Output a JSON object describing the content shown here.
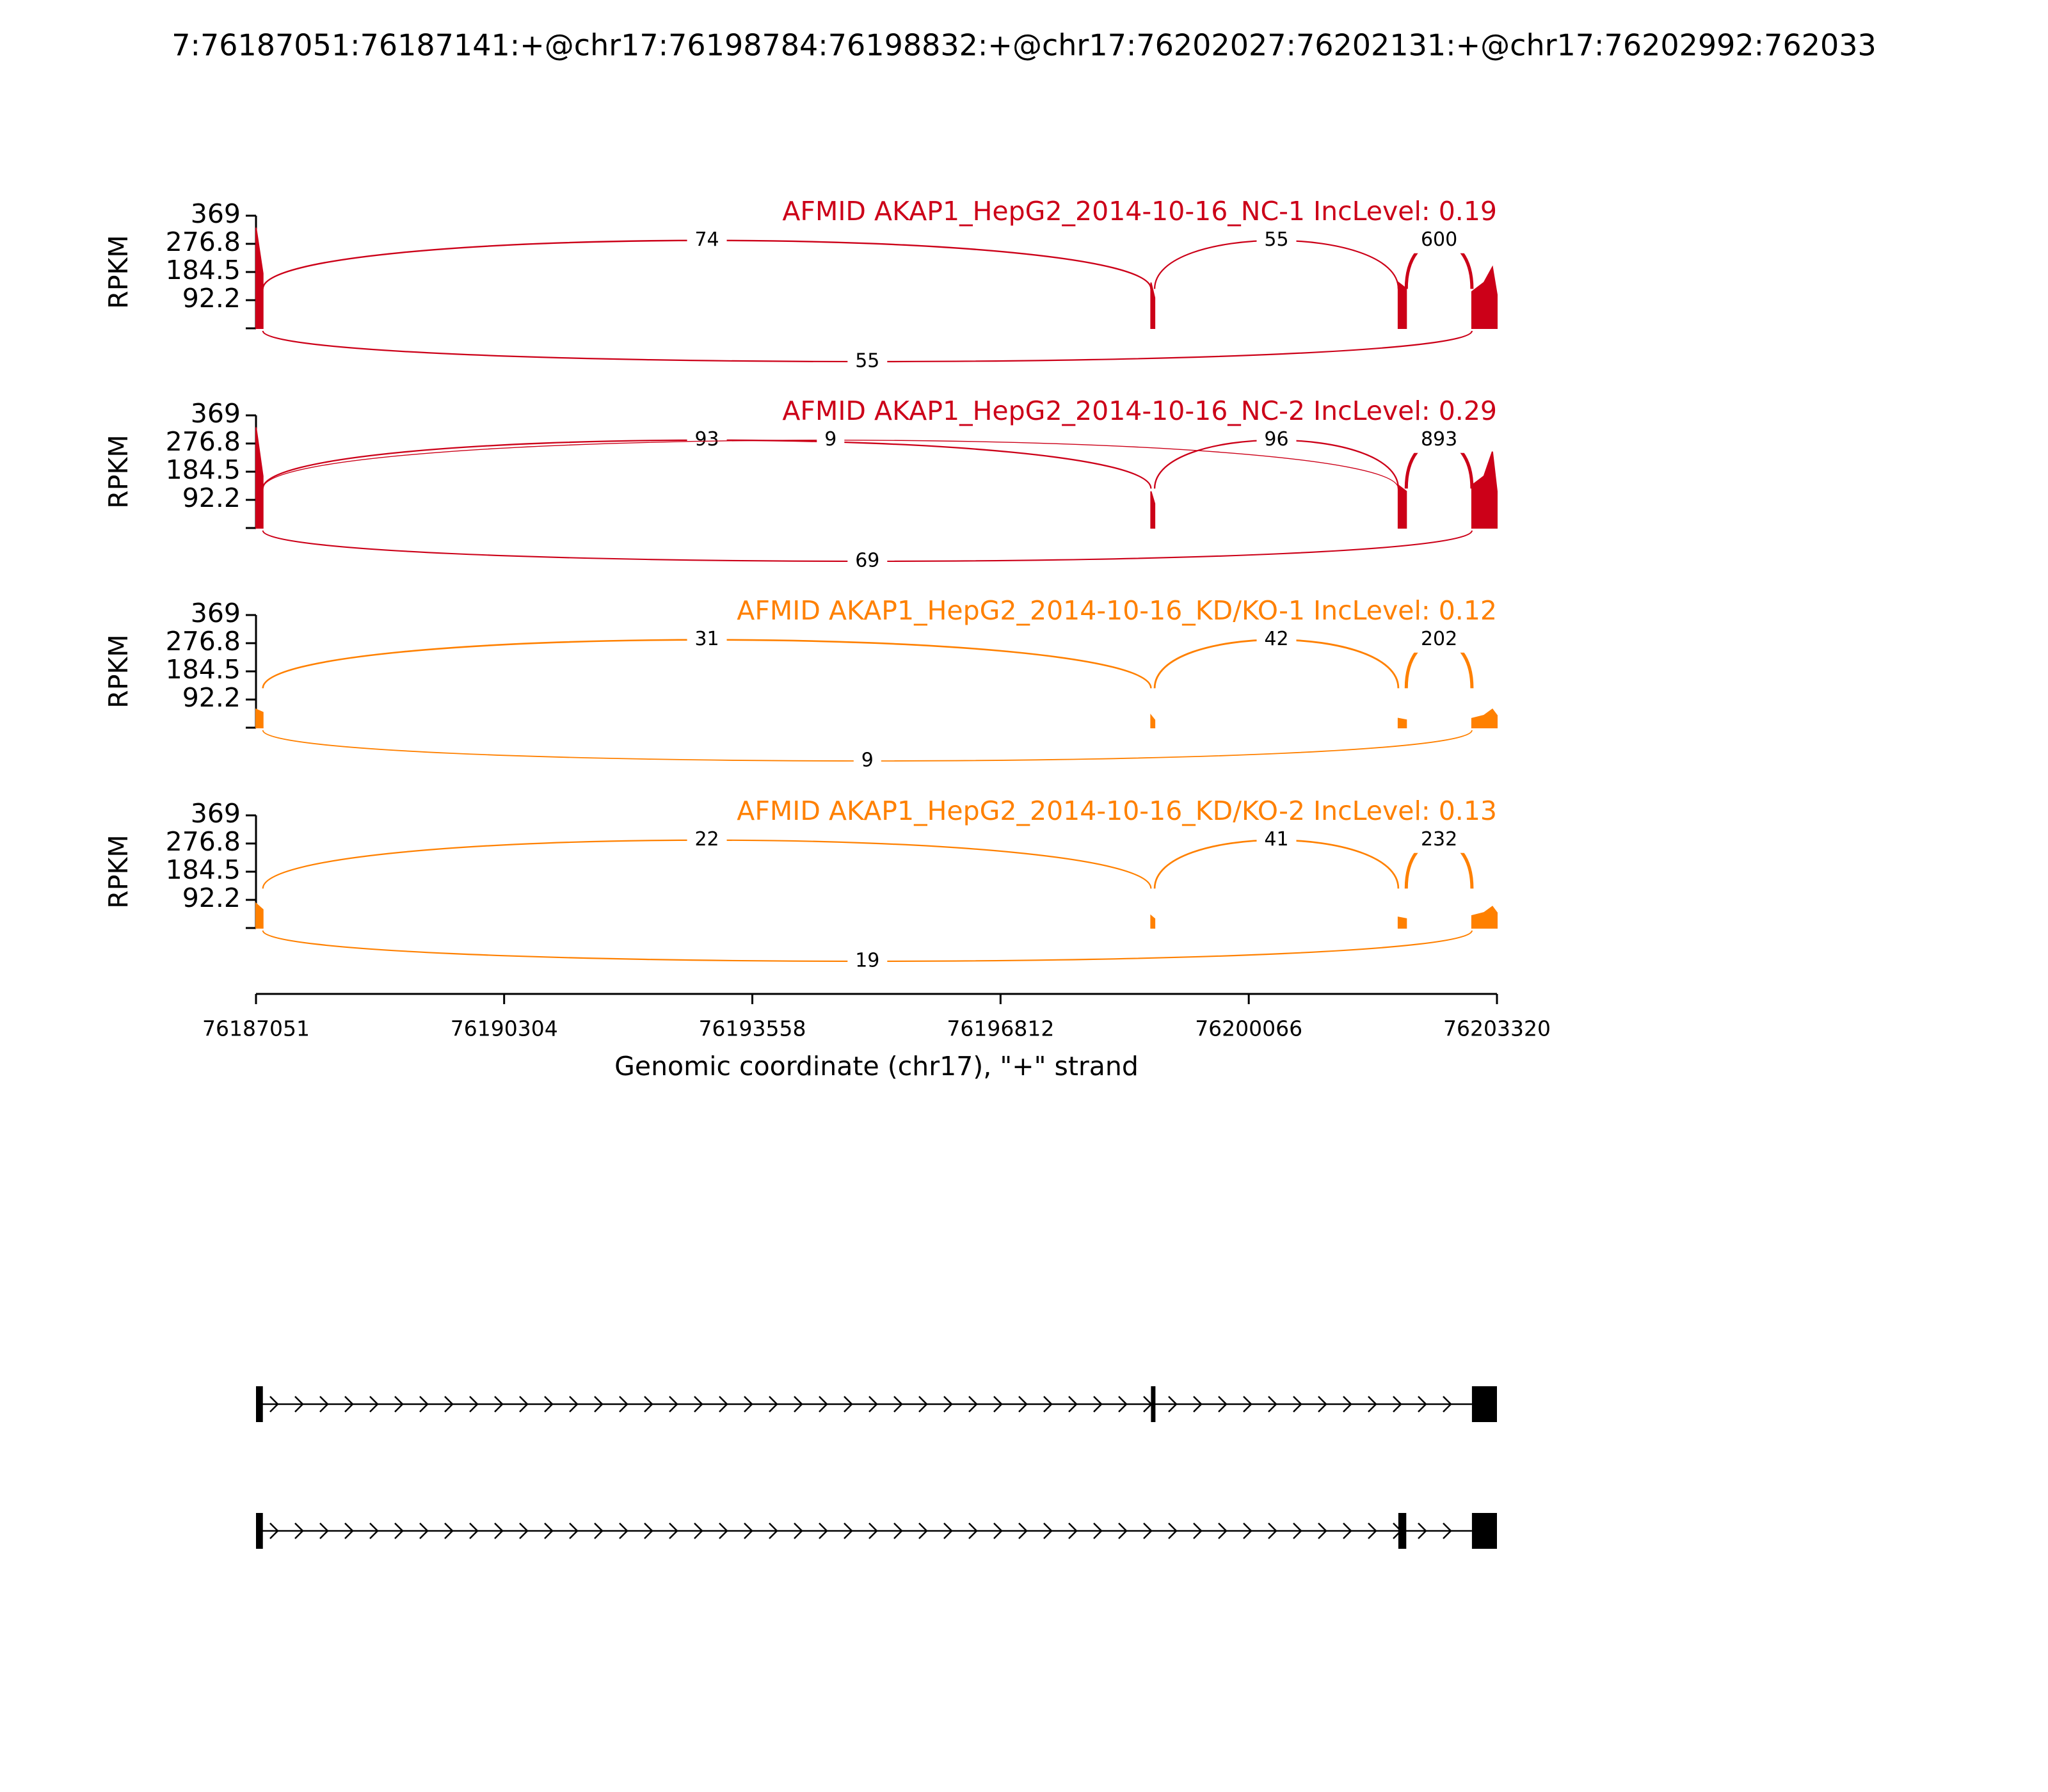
{
  "title": "7:76187051:76187141:+@chr17:76198784:76198832:+@chr17:76202027:76202131:+@chr17:76202992:762033",
  "chart_data": [
    {
      "type": "sashimi",
      "title": "AFMID AKAP1_HepG2_2014-10-16_NC-1 IncLevel: 0.19",
      "ylabel": "RPKM",
      "color": "#cc0018",
      "ylim": [
        0,
        369
      ],
      "yticks": [
        92.2,
        184.5,
        276.8,
        369
      ],
      "coverage": {
        "x": [
          76187051,
          76187141,
          76190000,
          76198784,
          76198832,
          76200000,
          76202027,
          76202131,
          76202500,
          76202992,
          76203150,
          76203260,
          76203320
        ],
        "values": [
          330,
          180,
          null,
          150,
          100,
          null,
          150,
          130,
          null,
          120,
          150,
          200,
          110
        ]
      },
      "junctions": [
        {
          "start": 76187141,
          "end": 76198784,
          "count": 74,
          "side": "above"
        },
        {
          "start": 76198832,
          "end": 76202027,
          "count": 55,
          "side": "above"
        },
        {
          "start": 76202131,
          "end": 76202992,
          "count": 600,
          "side": "above"
        },
        {
          "start": 76187141,
          "end": 76202992,
          "count": 55,
          "side": "below"
        }
      ]
    },
    {
      "type": "sashimi",
      "title": "AFMID AKAP1_HepG2_2014-10-16_NC-2 IncLevel: 0.29",
      "ylabel": "RPKM",
      "color": "#cc0018",
      "ylim": [
        0,
        369
      ],
      "yticks": [
        92.2,
        184.5,
        276.8,
        369
      ],
      "coverage": {
        "x": [
          76187051,
          76187141,
          76190000,
          76198784,
          76198832,
          76200000,
          76202027,
          76202131,
          76202500,
          76202992,
          76203150,
          76203260,
          76203320
        ],
        "values": [
          330,
          170,
          null,
          120,
          80,
          null,
          140,
          120,
          null,
          140,
          170,
          250,
          120
        ]
      },
      "junctions": [
        {
          "start": 76187141,
          "end": 76198784,
          "count": 93,
          "side": "above"
        },
        {
          "start": 76187141,
          "end": 76202027,
          "count": 9,
          "side": "above"
        },
        {
          "start": 76198832,
          "end": 76202027,
          "count": 96,
          "side": "above"
        },
        {
          "start": 76202131,
          "end": 76202992,
          "count": 893,
          "side": "above"
        },
        {
          "start": 76187141,
          "end": 76202992,
          "count": 69,
          "side": "below"
        }
      ]
    },
    {
      "type": "sashimi",
      "title": "AFMID AKAP1_HepG2_2014-10-16_KD/KO-1 IncLevel: 0.12",
      "ylabel": "RPKM",
      "color": "#ff8000",
      "ylim": [
        0,
        369
      ],
      "yticks": [
        92.2,
        184.5,
        276.8,
        369
      ],
      "coverage": {
        "x": [
          76187051,
          76187141,
          76190000,
          76198784,
          76198832,
          76200000,
          76202027,
          76202131,
          76202500,
          76202992,
          76203150,
          76203260,
          76203320
        ],
        "values": [
          60,
          50,
          null,
          40,
          25,
          null,
          30,
          25,
          null,
          30,
          40,
          60,
          40
        ]
      },
      "junctions": [
        {
          "start": 76187141,
          "end": 76198784,
          "count": 31,
          "side": "above"
        },
        {
          "start": 76198832,
          "end": 76202027,
          "count": 42,
          "side": "above"
        },
        {
          "start": 76202131,
          "end": 76202992,
          "count": 202,
          "side": "above"
        },
        {
          "start": 76187141,
          "end": 76202992,
          "count": 9,
          "side": "below"
        }
      ]
    },
    {
      "type": "sashimi",
      "title": "AFMID AKAP1_HepG2_2014-10-16_KD/KO-2 IncLevel: 0.13",
      "ylabel": "RPKM",
      "color": "#ff8000",
      "ylim": [
        0,
        369
      ],
      "yticks": [
        92.2,
        184.5,
        276.8,
        369
      ],
      "coverage": {
        "x": [
          76187051,
          76187141,
          76190000,
          76198784,
          76198832,
          76200000,
          76202027,
          76202131,
          76202500,
          76202992,
          76203150,
          76203260,
          76203320
        ],
        "values": [
          80,
          60,
          null,
          40,
          30,
          null,
          35,
          30,
          null,
          40,
          50,
          70,
          50
        ]
      },
      "junctions": [
        {
          "start": 76187141,
          "end": 76198784,
          "count": 22,
          "side": "above"
        },
        {
          "start": 76198832,
          "end": 76202027,
          "count": 41,
          "side": "above"
        },
        {
          "start": 76202131,
          "end": 76202992,
          "count": 232,
          "side": "above"
        },
        {
          "start": 76187141,
          "end": 76202992,
          "count": 19,
          "side": "below"
        }
      ]
    }
  ],
  "x_axis": {
    "xlim": [
      76187051,
      76203320
    ],
    "xticks": [
      76187051,
      76190304,
      76193558,
      76196812,
      76200066,
      76203320
    ],
    "xlabel": "Genomic coordinate (chr17), \"+\" strand"
  },
  "gene_model": {
    "transcripts": [
      {
        "exons": [
          [
            76187051,
            76187141
          ],
          [
            76198784,
            76198832
          ],
          [
            76202992,
            76203320
          ]
        ]
      },
      {
        "exons": [
          [
            76187051,
            76187141
          ],
          [
            76202027,
            76202131
          ],
          [
            76202992,
            76203320
          ]
        ]
      }
    ]
  }
}
